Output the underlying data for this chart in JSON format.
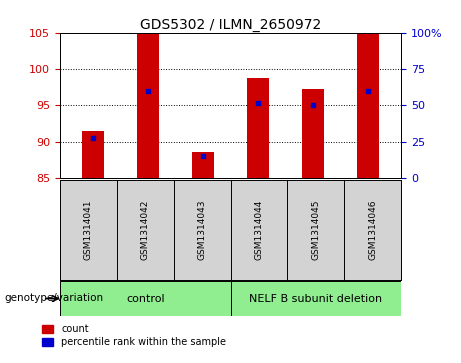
{
  "title": "GDS5302 / ILMN_2650972",
  "samples": [
    "GSM1314041",
    "GSM1314042",
    "GSM1314043",
    "GSM1314044",
    "GSM1314045",
    "GSM1314046"
  ],
  "count_values": [
    91.5,
    105.0,
    88.5,
    98.7,
    97.3,
    105.0
  ],
  "percentile_values": [
    90.5,
    97.0,
    88.0,
    95.3,
    95.0,
    97.0
  ],
  "ylim_left": [
    85,
    105
  ],
  "ylim_right": [
    0,
    100
  ],
  "yticks_left": [
    85,
    90,
    95,
    100,
    105
  ],
  "yticks_right": [
    0,
    25,
    50,
    75,
    100
  ],
  "bar_color": "#cc0000",
  "dot_color": "#0000cc",
  "bar_width": 0.4,
  "tick_color_left": "#cc0000",
  "tick_color_right": "#0000cc",
  "control_label": "control",
  "nelf_label": "NELF B subunit deletion",
  "group_color": "#90ee90",
  "label_bg": "#d3d3d3",
  "genotype_label": "genotype/variation",
  "legend_count": "count",
  "legend_pct": "percentile rank within the sample"
}
